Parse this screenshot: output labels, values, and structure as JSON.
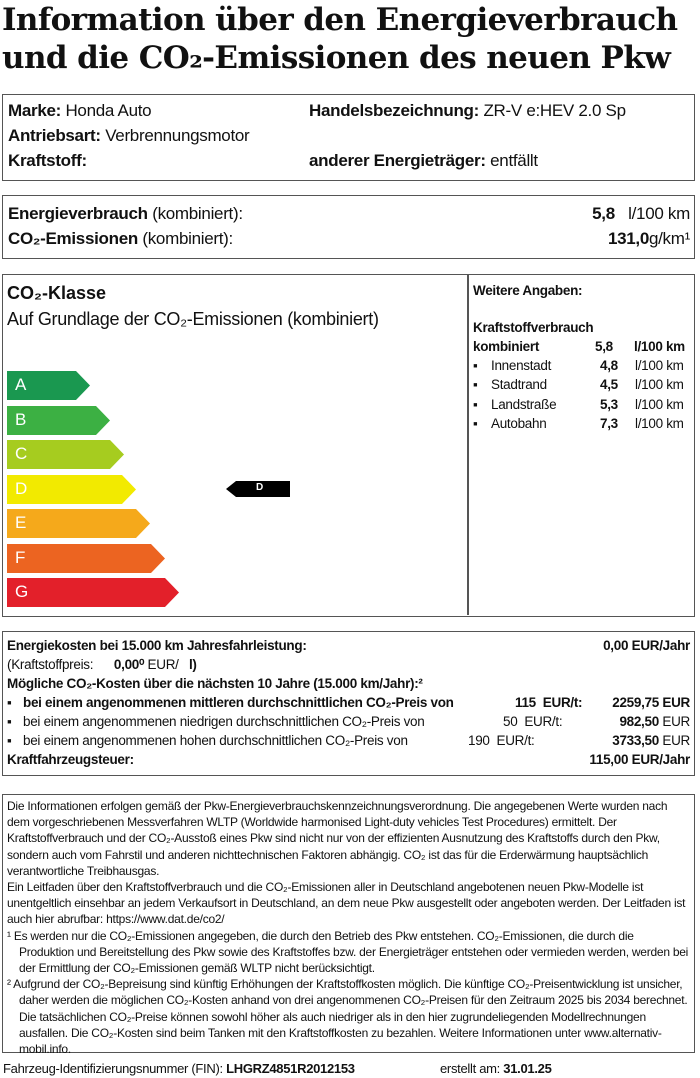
{
  "title": {
    "line1": "Information über den Energieverbrauch",
    "line2": "und die CO₂-Emissionen des neuen Pkw"
  },
  "vehicle": {
    "marke_label": "Marke:",
    "marke": "Honda Auto",
    "handel_label": "Handelsbezeichnung:",
    "handel": "ZR-V e:HEV 2.0 Sp",
    "antrieb_label": "Antriebsart:",
    "antrieb": "Verbrennungsmotor",
    "kraftstoff_label": "Kraftstoff:",
    "anderer_label": "anderer Energieträger:",
    "anderer": "entfällt"
  },
  "consumption": {
    "energy_label": "Energieverbrauch",
    "energy_suffix": "(kombiniert):",
    "energy_value": "5,8",
    "energy_unit": "l/100 km",
    "co2_label": "CO₂-Emissionen",
    "co2_suffix": "(kombiniert):",
    "co2_value": "131,0",
    "co2_unit": "g/km¹"
  },
  "co2_class": {
    "title": "CO₂-Klasse",
    "subtitle": "Auf Grundlage der CO₂-Emissionen (kombiniert)",
    "classes": [
      {
        "label": "A",
        "color": "#1a9850"
      },
      {
        "label": "B",
        "color": "#3cb043"
      },
      {
        "label": "C",
        "color": "#a6cc1f"
      },
      {
        "label": "D",
        "color": "#f2ea00"
      },
      {
        "label": "E",
        "color": "#f5a91b"
      },
      {
        "label": "F",
        "color": "#ec6421"
      },
      {
        "label": "G",
        "color": "#e3202a"
      }
    ],
    "current": "D"
  },
  "further": {
    "title": "Weitere Angaben:",
    "heading": "Kraftstoffverbrauch",
    "combined_label": "kombiniert",
    "combined_value": "5,8",
    "combined_unit": "l/100 km",
    "rows": [
      {
        "label": "Innenstadt",
        "value": "4,8",
        "unit": "l/100 km"
      },
      {
        "label": "Stadtrand",
        "value": "4,5",
        "unit": "l/100 km"
      },
      {
        "label": "Landstraße",
        "value": "5,3",
        "unit": "l/100 km"
      },
      {
        "label": "Autobahn",
        "value": "7,3",
        "unit": "l/100 km"
      }
    ]
  },
  "costs": {
    "energy_label": "Energiekosten bei 15.000 km Jahresfahrleistung:",
    "energy_value": "0,00 EUR/Jahr",
    "fuel_label": "(Kraftstoffpreis:",
    "fuel_value": "0,00⁰",
    "fuel_unit": "EUR/",
    "fuel_unit2": "l)",
    "co2_heading": "Mögliche CO₂-Kosten über die nächsten 10 Jahre (15.000 km/Jahr):²",
    "rows": [
      {
        "text": "bei einem angenommenen mittleren durchschnittlichen CO₂-Preis von",
        "price": "115",
        "unit": "EUR/t:",
        "value": "2259,75 EUR"
      },
      {
        "text": "bei einem angenommenen niedrigen durchschnittlichen CO₂-Preis von",
        "price": "50",
        "unit": "EUR/t:",
        "value": "982,50",
        "value_unit": "EUR"
      },
      {
        "text": "bei einem angenommenen hohen durchschnittlichen CO₂-Preis von",
        "price": "190",
        "unit": "EUR/t:",
        "value": "3733,50",
        "value_unit": "EUR"
      }
    ],
    "tax_label": "Kraftfahrzeugsteuer:",
    "tax_value": "115,00 EUR/Jahr"
  },
  "notes": {
    "p1": "Die Informationen erfolgen gemäß der Pkw-Energieverbrauchskennzeichnungsverordnung. Die angegebenen Werte wurden nach dem vorgeschriebenen Messverfahren WLTP (Worldwide harmonised Light-duty vehicles Test Procedures) ermittelt. Der Kraftstoffverbrauch und der CO₂-Ausstoß eines Pkw sind nicht nur von der effizienten Ausnutzung des Kraftstoffs durch den Pkw, sondern auch vom Fahrstil und anderen nichttechnischen Faktoren abhängig. CO₂ ist das für die Erderwärmung hauptsächlich verantwortliche Treibhausgas.",
    "p2": "Ein Leitfaden über den Kraftstoffverbrauch und die CO₂-Emissionen aller in Deutschland angebotenen neuen Pkw-Modelle ist unentgeltlich einsehbar an jedem Verkaufsort in Deutschland, an dem neue Pkw ausgestellt oder angeboten werden. Der Leitfaden ist auch hier abrufbar:  https://www.dat.de/co2/",
    "fn1": "¹ Es werden nur die CO₂-Emissionen angegeben, die durch den Betrieb des Pkw entstehen. CO₂-Emissionen, die durch die Produktion und Bereitstellung des Pkw sowie des Kraftstoffes bzw. der Energieträger entstehen oder vermieden werden, werden bei der Ermittlung der CO₂-Emissionen gemäß WLTP nicht berücksichtigt.",
    "fn2": "² Aufgrund der CO₂-Bepreisung sind künftig Erhöhungen der Kraftstoffkosten möglich. Die künftige CO₂-Preisentwicklung ist unsicher, daher werden die möglichen CO₂-Kosten anhand von drei angenommenen CO₂-Preisen für den Zeitraum  2025  bis  2034  berechnet. Die tatsächlichen CO₂-Preise können sowohl höher als auch niedriger als in den hier zugrundeliegenden Modellrechnungen ausfallen. Die CO₂-Kosten sind beim Tanken mit den Kraftstoffkosten zu bezahlen. Weitere Informationen unter www.alternativ-mobil.info."
  },
  "footer": {
    "fin_label": "Fahrzeug-Identifizierungsnummer (FIN):",
    "fin": "LHGRZ4851R2012153",
    "date_label": "erstellt am:",
    "date": "31.01.25"
  }
}
